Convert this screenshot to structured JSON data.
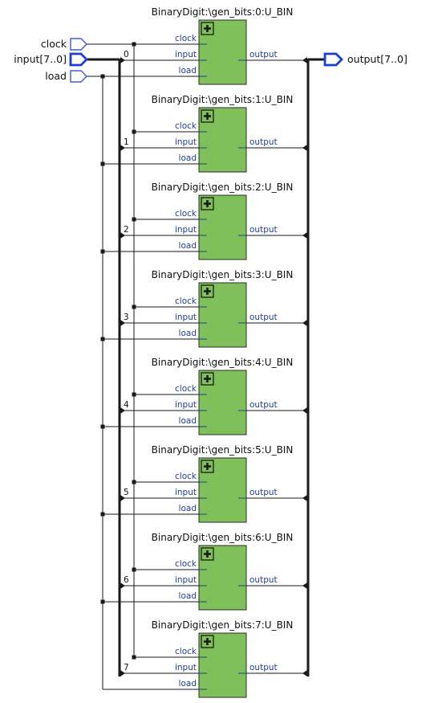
{
  "inputs": [
    {
      "id": "clock",
      "label": "clock",
      "kind": "single"
    },
    {
      "id": "input",
      "label": "input[7..0]",
      "kind": "bus"
    },
    {
      "id": "load",
      "label": "load",
      "kind": "single"
    }
  ],
  "output": {
    "label": "output[7..0]"
  },
  "blocks": [
    {
      "title": "BinaryDigit:\\gen_bits:0:U_BIN",
      "index": "0",
      "ports_in": [
        "clock",
        "input",
        "load"
      ],
      "port_out": "output"
    },
    {
      "title": "BinaryDigit:\\gen_bits:1:U_BIN",
      "index": "1",
      "ports_in": [
        "clock",
        "input",
        "load"
      ],
      "port_out": "output"
    },
    {
      "title": "BinaryDigit:\\gen_bits:2:U_BIN",
      "index": "2",
      "ports_in": [
        "clock",
        "input",
        "load"
      ],
      "port_out": "output"
    },
    {
      "title": "BinaryDigit:\\gen_bits:3:U_BIN",
      "index": "3",
      "ports_in": [
        "clock",
        "input",
        "load"
      ],
      "port_out": "output"
    },
    {
      "title": "BinaryDigit:\\gen_bits:4:U_BIN",
      "index": "4",
      "ports_in": [
        "clock",
        "input",
        "load"
      ],
      "port_out": "output"
    },
    {
      "title": "BinaryDigit:\\gen_bits:5:U_BIN",
      "index": "5",
      "ports_in": [
        "clock",
        "input",
        "load"
      ],
      "port_out": "output"
    },
    {
      "title": "BinaryDigit:\\gen_bits:6:U_BIN",
      "index": "6",
      "ports_in": [
        "clock",
        "input",
        "load"
      ],
      "port_out": "output"
    },
    {
      "title": "BinaryDigit:\\gen_bits:7:U_BIN",
      "index": "7",
      "ports_in": [
        "clock",
        "input",
        "load"
      ],
      "port_out": "output"
    }
  ],
  "colors": {
    "block_fill": "#7fc05a",
    "port_blue": "#1f3f8f",
    "bus_blue": "#1a3fcf",
    "wire": "#1a1a1a"
  },
  "icons": {
    "expand": "plus-box-icon"
  }
}
